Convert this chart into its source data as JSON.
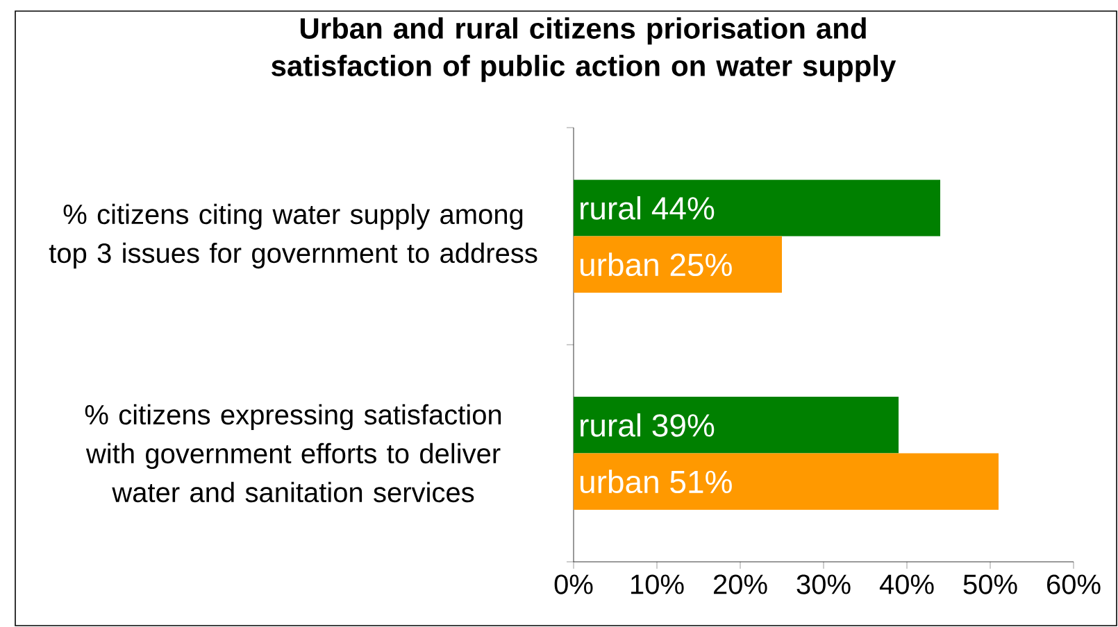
{
  "chart_data": {
    "type": "bar",
    "orientation": "horizontal",
    "title": "Urban and rural citizens priorisation and satisfaction of public action on water supply",
    "categories": [
      "% citizens citing water supply among top 3 issues for government to address",
      "% citizens expressing satisfaction with government efforts to deliver water and sanitation services"
    ],
    "series": [
      {
        "color": "#008000",
        "values": [
          44,
          39
        ],
        "value_labels": [
          "rural 44%",
          "rural 39%"
        ]
      },
      {
        "color": "#ff9900",
        "values": [
          25,
          51
        ],
        "value_labels": [
          "urban 25%",
          "urban 51%"
        ]
      }
    ],
    "xlim": [
      0,
      60
    ],
    "xticks": [
      {
        "value": 0,
        "label": "0%"
      },
      {
        "value": 10,
        "label": "10%"
      },
      {
        "value": 20,
        "label": "20%"
      },
      {
        "value": 30,
        "label": "30%"
      },
      {
        "value": 40,
        "label": "40%"
      },
      {
        "value": 50,
        "label": "50%"
      },
      {
        "value": 60,
        "label": "60%"
      }
    ],
    "grid": false
  }
}
